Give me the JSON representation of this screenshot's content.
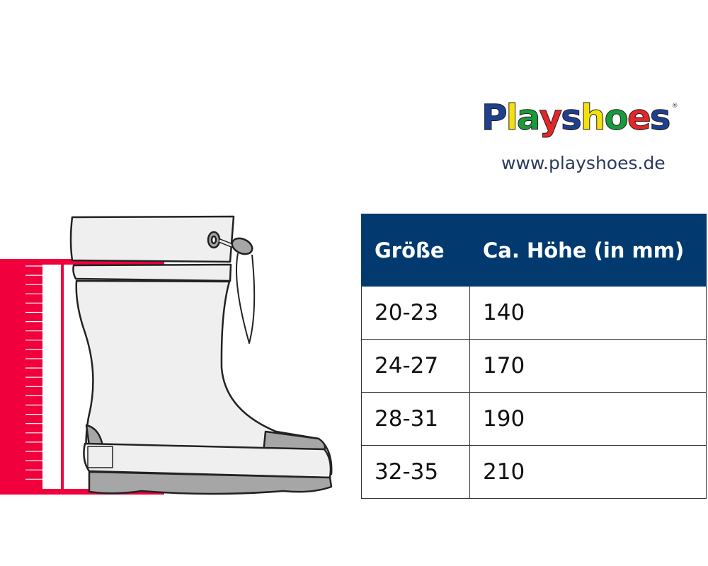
{
  "brand": {
    "logo_text": "Playshoes",
    "logo_letters": [
      {
        "ch": "P",
        "color": "#1f3f91"
      },
      {
        "ch": "l",
        "color": "#f5e10a"
      },
      {
        "ch": "a",
        "color": "#1a9a3a"
      },
      {
        "ch": "y",
        "color": "#e2262a"
      },
      {
        "ch": "s",
        "color": "#1f3f91"
      },
      {
        "ch": "h",
        "color": "#f5e10a"
      },
      {
        "ch": "o",
        "color": "#1a9a3a"
      },
      {
        "ch": "e",
        "color": "#e2262a"
      },
      {
        "ch": "s",
        "color": "#1f3f91"
      }
    ],
    "url": "www.playshoes.de"
  },
  "size_table": {
    "headers": [
      "Größe",
      "Ca. Höhe (in mm)"
    ],
    "rows": [
      [
        "20-23",
        "140"
      ],
      [
        "24-27",
        "170"
      ],
      [
        "28-31",
        "190"
      ],
      [
        "32-35",
        "210"
      ]
    ]
  },
  "colors": {
    "header_bg": "#023a70",
    "ruler": "#f0003c",
    "boot_fill": "#efefef",
    "boot_accent": "#a6a6a6"
  }
}
